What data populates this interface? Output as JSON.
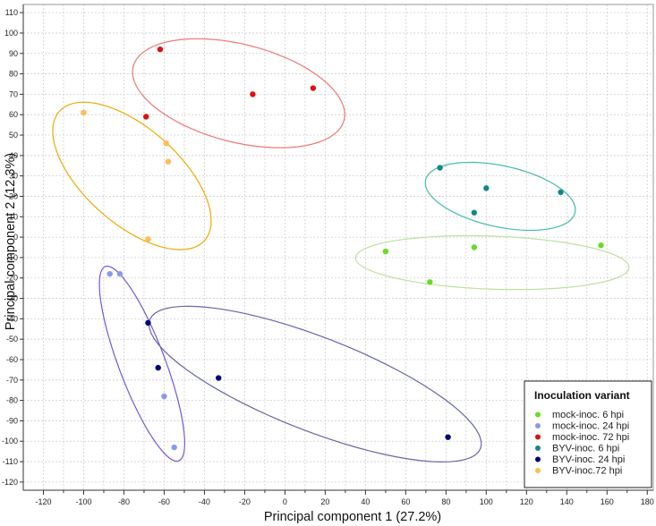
{
  "chart_data": {
    "type": "scatter",
    "title": "",
    "xlabel": "Principal component 1 (27.2%)",
    "ylabel": "Principal component 2 (12.3%)",
    "xlim": [
      -130,
      183
    ],
    "ylim": [
      -124,
      114
    ],
    "xticks": [
      -120,
      -110,
      -100,
      -90,
      -80,
      -70,
      -60,
      -50,
      -40,
      -30,
      -20,
      -10,
      0,
      10,
      20,
      30,
      40,
      50,
      60,
      70,
      80,
      90,
      100,
      110,
      120,
      130,
      140,
      150,
      160,
      170,
      180
    ],
    "xtick_labels": [
      "-120",
      "-100",
      "-80",
      "-60",
      "-40",
      "-20",
      "0",
      "20",
      "40",
      "60",
      "80",
      "100",
      "120",
      "140",
      "160",
      "180"
    ],
    "yticks": [
      110,
      100,
      90,
      80,
      70,
      60,
      50,
      40,
      30,
      20,
      10,
      0,
      -10,
      -20,
      -30,
      -40,
      -50,
      -60,
      -70,
      -80,
      -90,
      -100,
      -110,
      -120
    ],
    "grid": true,
    "legend": {
      "title": "Inoculation variant",
      "position": "bottom-right"
    },
    "series": [
      {
        "name": "mock-inoc. 6 hpi",
        "color": "#66dd22",
        "ellipse_color": "#bfe0a0",
        "points": [
          [
            50,
            -7
          ],
          [
            72,
            -22
          ],
          [
            94,
            -5
          ],
          [
            157,
            -4
          ]
        ],
        "ellipse": {
          "cx": 103,
          "cy": -12.5,
          "rx": 68,
          "ry": 13,
          "angle_deg": -2
        }
      },
      {
        "name": "mock-inoc. 24 hpi",
        "color": "#8899ee",
        "ellipse_color": "#7755dd",
        "points": [
          [
            -87,
            -18
          ],
          [
            -82,
            -18
          ],
          [
            -60,
            -78
          ],
          [
            -55,
            -103
          ]
        ],
        "ellipse": {
          "cx": -71,
          "cy": -62,
          "rx": 51,
          "ry": 11.5,
          "angle_deg": -69
        }
      },
      {
        "name": "mock-inoc. 72 hpi",
        "color": "#dd1111",
        "ellipse_color": "#ee7777",
        "points": [
          [
            -62,
            92
          ],
          [
            -69,
            59
          ],
          [
            -16,
            70
          ],
          [
            14,
            73
          ]
        ],
        "ellipse": {
          "cx": -23,
          "cy": 70.5,
          "rx": 54,
          "ry": 24,
          "angle_deg": -14
        }
      },
      {
        "name": "BYV-inoc. 6 hpi",
        "color": "#118888",
        "ellipse_color": "#44bbaa",
        "points": [
          [
            77,
            34
          ],
          [
            94,
            12
          ],
          [
            100,
            24
          ],
          [
            137,
            22
          ]
        ],
        "ellipse": {
          "cx": 107,
          "cy": 20,
          "rx": 38,
          "ry": 15,
          "angle_deg": -12
        }
      },
      {
        "name": "BYV-inoc. 24 hpi",
        "color": "#000077",
        "ellipse_color": "#6666aa",
        "points": [
          [
            -68,
            -42
          ],
          [
            -63,
            -64
          ],
          [
            -33,
            -69
          ],
          [
            81,
            -98
          ]
        ],
        "ellipse": {
          "cx": 15,
          "cy": -72,
          "rx": 88,
          "ry": 23,
          "angle_deg": -21
        }
      },
      {
        "name": "BYV-inoc.72 hpi",
        "color": "#ffbb55",
        "ellipse_color": "#eeaa00",
        "points": [
          [
            -100,
            61
          ],
          [
            -59,
            46
          ],
          [
            -58,
            37
          ],
          [
            -68,
            -1
          ]
        ],
        "ellipse": {
          "cx": -76,
          "cy": 30,
          "rx": 48,
          "ry": 23.5,
          "angle_deg": -41
        }
      }
    ]
  }
}
